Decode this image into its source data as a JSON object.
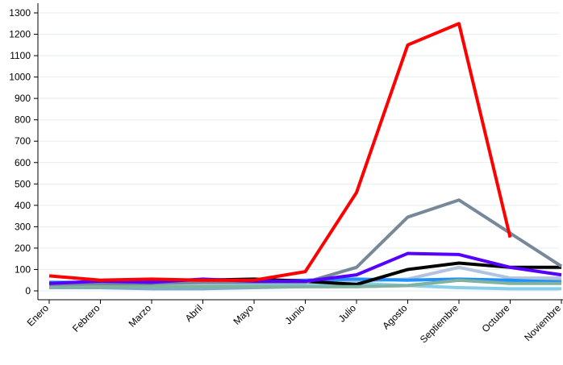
{
  "chart_data": {
    "type": "line",
    "title": "",
    "xlabel": "",
    "ylabel": "",
    "categories": [
      "Enero",
      "Febrero",
      "Marzo",
      "Abril",
      "Mayo",
      "Junio",
      "Julio",
      "Agosto",
      "Septiembre",
      "Octubre",
      "Noviembre"
    ],
    "ylim": [
      0,
      1300
    ],
    "yticks": [
      0,
      100,
      200,
      300,
      400,
      500,
      600,
      700,
      800,
      900,
      1000,
      1100,
      1200,
      1300
    ],
    "grid": true,
    "legend": "none",
    "series": [
      {
        "color": "#B0C4DE",
        "values": [
          25,
          35,
          35,
          35,
          35,
          40,
          45,
          55,
          110,
          60,
          60
        ]
      },
      {
        "color": "#7FA8C9",
        "values": [
          15,
          15,
          10,
          10,
          15,
          20,
          20,
          25,
          50,
          45,
          45
        ]
      },
      {
        "color": "#87CEEB",
        "values": [
          20,
          25,
          20,
          20,
          25,
          25,
          35,
          25,
          15,
          10,
          10
        ]
      },
      {
        "color": "#1E90FF",
        "values": [
          40,
          40,
          40,
          45,
          45,
          50,
          55,
          50,
          55,
          50,
          40
        ]
      },
      {
        "color": "#000000",
        "values": [
          35,
          35,
          35,
          50,
          55,
          45,
          30,
          100,
          130,
          110,
          110
        ]
      },
      {
        "color": "#7FB3A0",
        "values": [
          20,
          20,
          20,
          20,
          20,
          20,
          20,
          25,
          50,
          35,
          35
        ]
      },
      {
        "color": "#778899",
        "values": [
          30,
          35,
          35,
          40,
          40,
          40,
          110,
          345,
          425,
          270,
          115
        ]
      },
      {
        "color": "#5500FF",
        "values": [
          35,
          45,
          40,
          55,
          45,
          45,
          75,
          175,
          170,
          110,
          75
        ]
      },
      {
        "color": "#FF0000",
        "values": [
          70,
          50,
          55,
          50,
          50,
          90,
          460,
          1150,
          1250,
          250,
          null
        ]
      }
    ]
  }
}
